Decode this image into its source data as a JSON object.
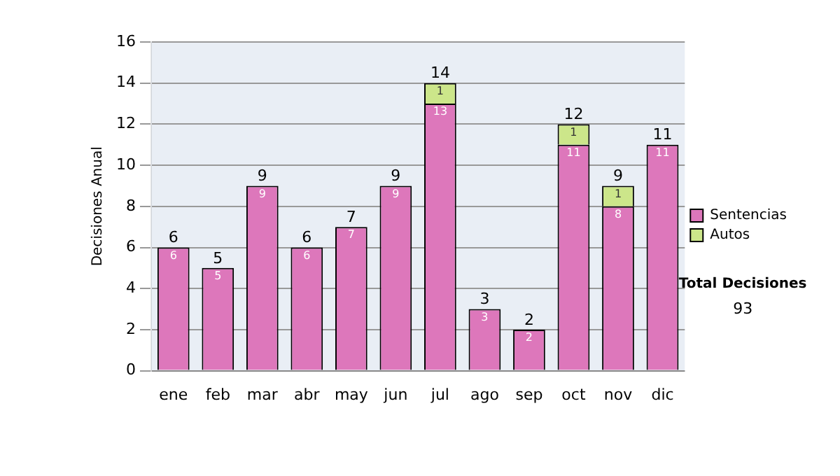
{
  "chart_data": {
    "type": "bar",
    "stacked": true,
    "ylabel": "Decisiones Anual",
    "categories": [
      "ene",
      "feb",
      "mar",
      "abr",
      "may",
      "jun",
      "jul",
      "ago",
      "sep",
      "oct",
      "nov",
      "dic"
    ],
    "series": [
      {
        "name": "Sentencias",
        "color": "#dd77bb",
        "values": [
          6,
          5,
          9,
          6,
          7,
          9,
          13,
          3,
          2,
          11,
          8,
          11
        ]
      },
      {
        "name": "Autos",
        "color": "#cce68a",
        "values": [
          null,
          null,
          null,
          null,
          null,
          null,
          1,
          null,
          null,
          1,
          1,
          null
        ]
      }
    ],
    "ylim": [
      0,
      16
    ],
    "yticks": [
      0,
      2,
      4,
      6,
      8,
      10,
      12,
      14,
      16
    ],
    "grid": "y",
    "legend": "right",
    "data_labels": true,
    "totals": [
      "6",
      "5",
      "9",
      "6",
      "7",
      "9",
      "14",
      "3",
      "2",
      "12",
      "9",
      "11"
    ],
    "annotations": [
      "Total Decisiones",
      "93"
    ]
  }
}
